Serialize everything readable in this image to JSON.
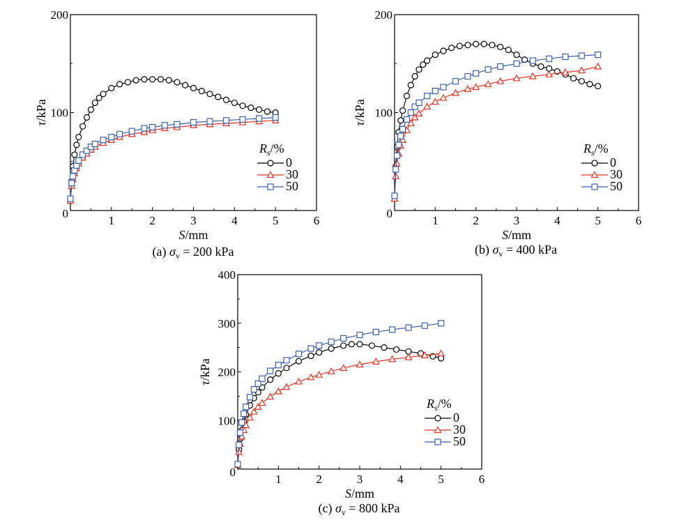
{
  "figure": {
    "colors": {
      "0": "#000000",
      "30": "#e8321e",
      "50": "#3a5fb5"
    },
    "markers": {
      "0": "circle",
      "30": "triangle",
      "50": "square"
    }
  },
  "chart_data": [
    {
      "type": "line",
      "caption_prefix": "(a) ",
      "caption_symbol": "σ",
      "caption_sub": "v",
      "caption_value": " = 200 kPa",
      "xlabel_italic": "S",
      "xlabel_rest": "/mm",
      "ylabel_italic": "τ",
      "ylabel_rest": "/kPa",
      "xlim": [
        0,
        6
      ],
      "ylim": [
        0,
        200
      ],
      "xticks": [
        "1",
        "2",
        "3",
        "4",
        "5",
        "6"
      ],
      "yticks": [
        "0",
        "100",
        "200"
      ],
      "legend_title_italic": "R",
      "legend_title_sub": "s",
      "legend_title_rest": "/%",
      "legend_position": "lower-right",
      "series": [
        {
          "name": "0",
          "key": "0",
          "x": [
            0,
            0.03,
            0.06,
            0.1,
            0.15,
            0.2,
            0.3,
            0.4,
            0.5,
            0.6,
            0.7,
            0.8,
            1.0,
            1.2,
            1.4,
            1.6,
            1.8,
            2.0,
            2.2,
            2.4,
            2.6,
            2.8,
            3.0,
            3.2,
            3.4,
            3.6,
            3.8,
            4.0,
            4.2,
            4.4,
            4.6,
            4.8,
            5.0
          ],
          "y": [
            10,
            30,
            45,
            57,
            67,
            75,
            86,
            95,
            103,
            110,
            115,
            119,
            125,
            129,
            131,
            133,
            134,
            134,
            134,
            133,
            131,
            128,
            125,
            122,
            119,
            116,
            113,
            110,
            107,
            105,
            103,
            101,
            100
          ]
        },
        {
          "name": "30",
          "key": "30",
          "x": [
            0,
            0.03,
            0.06,
            0.1,
            0.15,
            0.2,
            0.3,
            0.4,
            0.5,
            0.6,
            0.8,
            1.0,
            1.2,
            1.5,
            1.8,
            2.0,
            2.3,
            2.6,
            3.0,
            3.4,
            3.8,
            4.2,
            4.6,
            5.0
          ],
          "y": [
            10,
            25,
            32,
            38,
            43,
            48,
            54,
            58,
            62,
            65,
            69,
            72,
            75,
            78,
            80,
            82,
            84,
            85,
            87,
            88,
            89,
            90,
            91,
            92
          ]
        },
        {
          "name": "50",
          "key": "50",
          "x": [
            0,
            0.03,
            0.06,
            0.1,
            0.15,
            0.2,
            0.3,
            0.4,
            0.5,
            0.6,
            0.8,
            1.0,
            1.2,
            1.5,
            1.8,
            2.0,
            2.3,
            2.6,
            3.0,
            3.4,
            3.8,
            4.2,
            4.6,
            5.0
          ],
          "y": [
            12,
            28,
            35,
            41,
            46,
            51,
            57,
            61,
            65,
            68,
            72,
            75,
            78,
            81,
            84,
            85,
            87,
            88,
            90,
            91,
            92,
            93,
            94,
            95
          ]
        }
      ]
    },
    {
      "type": "line",
      "caption_prefix": "(b) ",
      "caption_symbol": "σ",
      "caption_sub": "v",
      "caption_value": " = 400 kPa",
      "xlabel_italic": "S",
      "xlabel_rest": "/mm",
      "ylabel_italic": "τ",
      "ylabel_rest": "/kPa",
      "xlim": [
        0,
        6
      ],
      "ylim": [
        0,
        200
      ],
      "xticks": [
        "1",
        "2",
        "3",
        "4",
        "5",
        "6"
      ],
      "yticks": [
        "0",
        "100",
        "200"
      ],
      "legend_title_italic": "R",
      "legend_title_sub": "s",
      "legend_title_rest": "/%",
      "legend_position": "lower-right",
      "series": [
        {
          "name": "0",
          "key": "0",
          "x": [
            0,
            0.03,
            0.06,
            0.1,
            0.15,
            0.2,
            0.3,
            0.4,
            0.5,
            0.6,
            0.7,
            0.8,
            1.0,
            1.2,
            1.4,
            1.6,
            1.8,
            2.0,
            2.2,
            2.4,
            2.6,
            2.8,
            3.0,
            3.2,
            3.4,
            3.6,
            3.8,
            4.0,
            4.2,
            4.4,
            4.6,
            4.8,
            5.0
          ],
          "y": [
            15,
            45,
            65,
            80,
            92,
            102,
            117,
            128,
            137,
            144,
            149,
            153,
            159,
            163,
            166,
            168,
            169,
            170,
            170,
            169,
            167,
            164,
            159,
            154,
            150,
            147,
            145,
            142,
            139,
            135,
            132,
            129,
            127
          ]
        },
        {
          "name": "30",
          "key": "30",
          "x": [
            0,
            0.03,
            0.06,
            0.1,
            0.15,
            0.2,
            0.3,
            0.4,
            0.5,
            0.6,
            0.8,
            1.0,
            1.2,
            1.5,
            1.8,
            2.0,
            2.3,
            2.6,
            3.0,
            3.4,
            3.8,
            4.2,
            4.6,
            5.0
          ],
          "y": [
            12,
            35,
            48,
            58,
            66,
            72,
            82,
            89,
            95,
            99,
            106,
            111,
            115,
            120,
            124,
            126,
            129,
            132,
            135,
            137,
            139,
            141,
            143,
            147
          ]
        },
        {
          "name": "50",
          "key": "50",
          "x": [
            0,
            0.03,
            0.06,
            0.1,
            0.15,
            0.2,
            0.3,
            0.4,
            0.5,
            0.6,
            0.8,
            1.0,
            1.2,
            1.5,
            1.8,
            2.0,
            2.3,
            2.6,
            3.0,
            3.4,
            3.8,
            4.2,
            4.6,
            5.0
          ],
          "y": [
            15,
            42,
            56,
            67,
            76,
            83,
            93,
            100,
            106,
            110,
            117,
            122,
            126,
            132,
            137,
            140,
            144,
            147,
            150,
            153,
            155,
            157,
            158,
            159
          ]
        }
      ]
    },
    {
      "type": "line",
      "caption_prefix": "(c) ",
      "caption_symbol": "σ",
      "caption_sub": "v",
      "caption_value": " = 800 kPa",
      "xlabel_italic": "S",
      "xlabel_rest": "/mm",
      "ylabel_italic": "τ",
      "ylabel_rest": "/kPa",
      "xlim": [
        0,
        6
      ],
      "ylim": [
        0,
        400
      ],
      "xticks": [
        "1",
        "2",
        "3",
        "4",
        "5",
        "6"
      ],
      "yticks": [
        "0",
        "100",
        "200",
        "300",
        "400"
      ],
      "legend_title_italic": "R",
      "legend_title_sub": "s",
      "legend_title_rest": "/%",
      "legend_position": "lower-right",
      "series": [
        {
          "name": "0",
          "key": "0",
          "x": [
            0,
            0.03,
            0.06,
            0.1,
            0.15,
            0.2,
            0.3,
            0.4,
            0.5,
            0.6,
            0.8,
            1.0,
            1.2,
            1.5,
            1.8,
            2.0,
            2.3,
            2.6,
            2.8,
            3.0,
            3.3,
            3.6,
            3.9,
            4.2,
            4.5,
            4.8,
            5.0
          ],
          "y": [
            8,
            40,
            62,
            80,
            98,
            112,
            131,
            146,
            158,
            168,
            184,
            197,
            208,
            222,
            233,
            240,
            248,
            254,
            257,
            257,
            254,
            250,
            246,
            242,
            238,
            232,
            228
          ]
        },
        {
          "name": "30",
          "key": "30",
          "x": [
            0,
            0.03,
            0.06,
            0.1,
            0.15,
            0.2,
            0.3,
            0.4,
            0.5,
            0.6,
            0.8,
            1.0,
            1.2,
            1.5,
            1.8,
            2.0,
            2.3,
            2.6,
            3.0,
            3.4,
            3.8,
            4.2,
            4.6,
            5.0
          ],
          "y": [
            8,
            35,
            52,
            67,
            80,
            90,
            106,
            118,
            128,
            136,
            149,
            160,
            169,
            180,
            189,
            194,
            201,
            208,
            215,
            221,
            226,
            230,
            234,
            238
          ]
        },
        {
          "name": "50",
          "key": "50",
          "x": [
            0,
            0.03,
            0.06,
            0.1,
            0.15,
            0.2,
            0.3,
            0.4,
            0.5,
            0.6,
            0.8,
            1.0,
            1.2,
            1.5,
            1.8,
            2.0,
            2.3,
            2.6,
            3.0,
            3.4,
            3.8,
            4.2,
            4.6,
            5.0
          ],
          "y": [
            10,
            50,
            75,
            96,
            114,
            128,
            148,
            164,
            176,
            186,
            202,
            214,
            224,
            237,
            248,
            254,
            262,
            269,
            276,
            282,
            287,
            291,
            295,
            300
          ]
        }
      ]
    }
  ]
}
